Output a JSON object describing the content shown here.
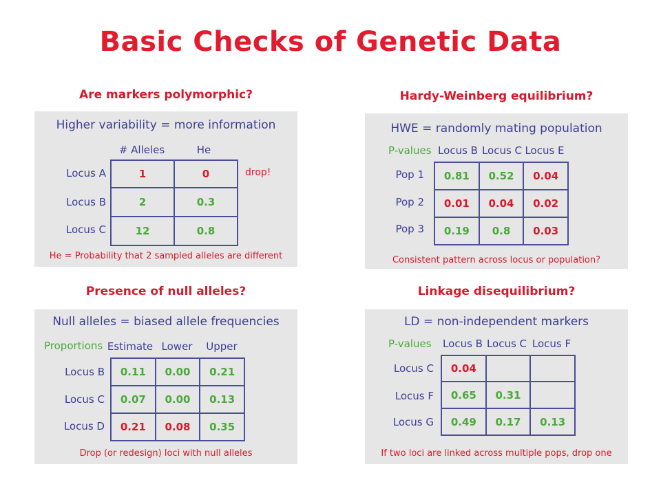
{
  "title": "Basic Checks of Genetic Data",
  "poly": {
    "heading": "Are markers polymorphic?",
    "subtitle": "Higher variability = more information",
    "cols": [
      "# Alleles",
      "He"
    ],
    "rows": [
      "Locus A",
      "Locus B",
      "Locus C"
    ],
    "cells": [
      [
        "1",
        "0"
      ],
      [
        "2",
        "0.3"
      ],
      [
        "12",
        "0.8"
      ]
    ],
    "side_note": "drop!",
    "note": "He = Probability that 2 sampled alleles are different"
  },
  "hwe": {
    "heading": "Hardy-Weinberg equilibrium?",
    "subtitle": "HWE = randomly mating population",
    "corner": "P-values",
    "cols": [
      "Locus B",
      "Locus C",
      "Locus E"
    ],
    "rows": [
      "Pop 1",
      "Pop 2",
      "Pop 3"
    ],
    "cells": [
      [
        "0.81",
        "0.52",
        "0.04"
      ],
      [
        "0.01",
        "0.04",
        "0.02"
      ],
      [
        "0.19",
        "0.8",
        "0.03"
      ]
    ],
    "note": "Consistent pattern across locus or population?"
  },
  "null": {
    "heading": "Presence of null alleles?",
    "subtitle": "Null alleles = biased allele frequencies",
    "corner": "Proportions",
    "cols": [
      "Estimate",
      "Lower",
      "Upper"
    ],
    "rows": [
      "Locus B",
      "Locus C",
      "Locus D"
    ],
    "cells": [
      [
        "0.11",
        "0.00",
        "0.21"
      ],
      [
        "0.07",
        "0.00",
        "0.13"
      ],
      [
        "0.21",
        "0.08",
        "0.35"
      ]
    ],
    "note": "Drop (or redesign) loci with null alleles"
  },
  "ld": {
    "heading": "Linkage disequilibrium?",
    "subtitle": "LD = non-independent markers",
    "corner": "P-values",
    "cols": [
      "Locus B",
      "Locus C",
      "Locus F"
    ],
    "rows": [
      "Locus C",
      "Locus F",
      "Locus G"
    ],
    "cells": [
      [
        "0.04",
        "",
        ""
      ],
      [
        "0.65",
        "0.31",
        ""
      ],
      [
        "0.49",
        "0.17",
        "0.13"
      ]
    ],
    "note": "If two loci are linked across multiple pops, drop one"
  },
  "colors": {
    "red": "#d7192c",
    "green": "#4aa93b",
    "blue": "#3a3f95",
    "panel": "#e6e6e6"
  }
}
